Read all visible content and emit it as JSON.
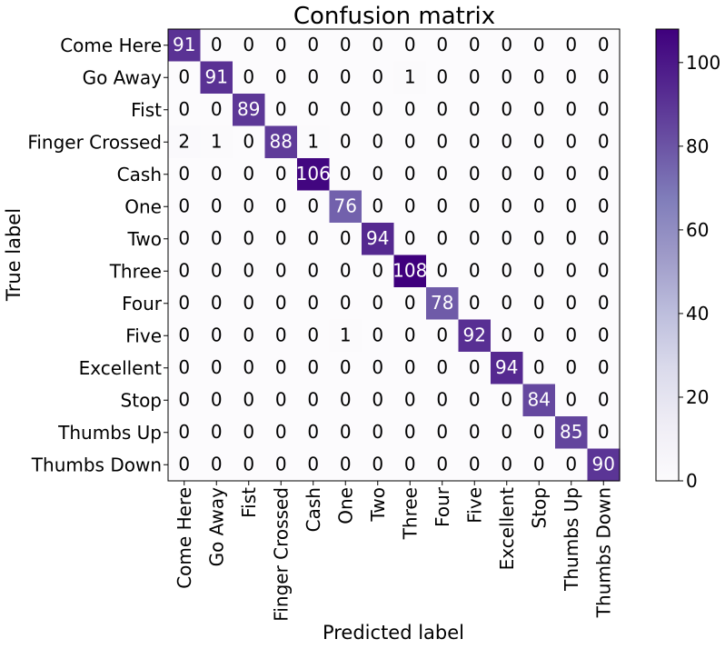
{
  "chart_data": {
    "type": "heatmap",
    "title": "Confusion matrix",
    "xlabel": "Predicted label",
    "ylabel": "True label",
    "labels": [
      "Come Here",
      "Go Away",
      "Fist",
      "Finger Crossed",
      "Cash",
      "One",
      "Two",
      "Three",
      "Four",
      "Five",
      "Excellent",
      "Stop",
      "Thumbs Up",
      "Thumbs Down"
    ],
    "matrix": [
      [
        91,
        0,
        0,
        0,
        0,
        0,
        0,
        0,
        0,
        0,
        0,
        0,
        0,
        0
      ],
      [
        0,
        91,
        0,
        0,
        0,
        0,
        0,
        1,
        0,
        0,
        0,
        0,
        0,
        0
      ],
      [
        0,
        0,
        89,
        0,
        0,
        0,
        0,
        0,
        0,
        0,
        0,
        0,
        0,
        0
      ],
      [
        2,
        1,
        0,
        88,
        1,
        0,
        0,
        0,
        0,
        0,
        0,
        0,
        0,
        0
      ],
      [
        0,
        0,
        0,
        0,
        106,
        0,
        0,
        0,
        0,
        0,
        0,
        0,
        0,
        0
      ],
      [
        0,
        0,
        0,
        0,
        0,
        76,
        0,
        0,
        0,
        0,
        0,
        0,
        0,
        0
      ],
      [
        0,
        0,
        0,
        0,
        0,
        0,
        94,
        0,
        0,
        0,
        0,
        0,
        0,
        0
      ],
      [
        0,
        0,
        0,
        0,
        0,
        0,
        0,
        108,
        0,
        0,
        0,
        0,
        0,
        0
      ],
      [
        0,
        0,
        0,
        0,
        0,
        0,
        0,
        0,
        78,
        0,
        0,
        0,
        0,
        0
      ],
      [
        0,
        0,
        0,
        0,
        0,
        1,
        0,
        0,
        0,
        92,
        0,
        0,
        0,
        0
      ],
      [
        0,
        0,
        0,
        0,
        0,
        0,
        0,
        0,
        0,
        0,
        94,
        0,
        0,
        0
      ],
      [
        0,
        0,
        0,
        0,
        0,
        0,
        0,
        0,
        0,
        0,
        0,
        84,
        0,
        0
      ],
      [
        0,
        0,
        0,
        0,
        0,
        0,
        0,
        0,
        0,
        0,
        0,
        0,
        85,
        0
      ],
      [
        0,
        0,
        0,
        0,
        0,
        0,
        0,
        0,
        0,
        0,
        0,
        0,
        0,
        90
      ]
    ],
    "colormap": "Purples",
    "colorbar_ticks": [
      0,
      20,
      40,
      60,
      80,
      100
    ],
    "value_range": [
      0,
      108
    ]
  }
}
